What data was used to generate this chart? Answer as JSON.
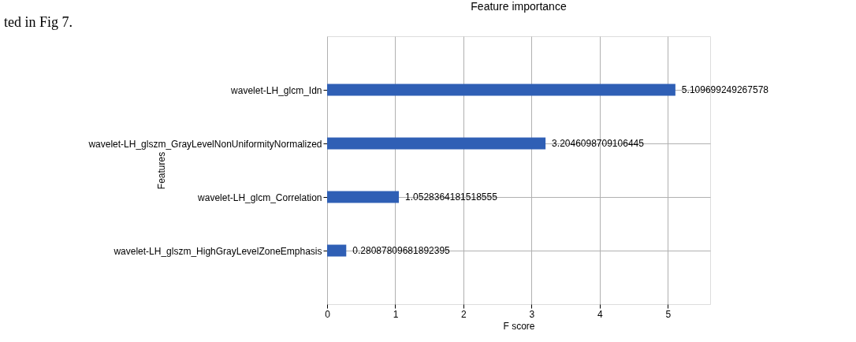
{
  "chart_data": {
    "type": "bar",
    "orientation": "horizontal",
    "title": "Feature importance",
    "xlabel": "F score",
    "ylabel": "Features",
    "categories": [
      "wavelet-LH_glcm_Idn",
      "wavelet-LH_glszm_GrayLevelNonUniformityNormalized",
      "wavelet-LH_glcm_Correlation",
      "wavelet-LH_glszm_HighGrayLevelZoneEmphasis"
    ],
    "values": [
      5.109699249267578,
      3.2046098709106445,
      1.0528364181518555,
      0.28087809681892395
    ],
    "value_labels": [
      "5.109699249267578",
      "3.2046098709106445",
      "1.0528364181518555",
      "0.28087809681892395"
    ],
    "color": "#2f5fb5",
    "xlim": [
      0,
      5.62
    ],
    "xticks": [
      0,
      1,
      2,
      3,
      4,
      5
    ],
    "grid": true,
    "annotations": [
      "ted in Fig 7."
    ]
  }
}
